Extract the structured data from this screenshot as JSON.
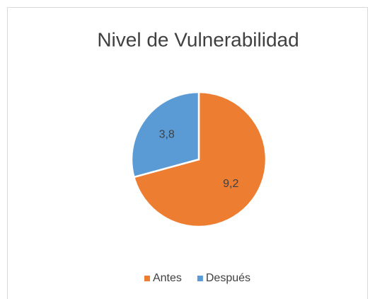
{
  "chart_data": {
    "type": "pie",
    "title": "Nivel de Vulnerabilidad",
    "categories": [
      "Antes",
      "Después"
    ],
    "values": [
      9.2,
      3.8
    ],
    "value_labels": [
      "9,2",
      "3,8"
    ],
    "colors": [
      "#ED7D31",
      "#5B9BD5"
    ],
    "legend": "bottom"
  }
}
